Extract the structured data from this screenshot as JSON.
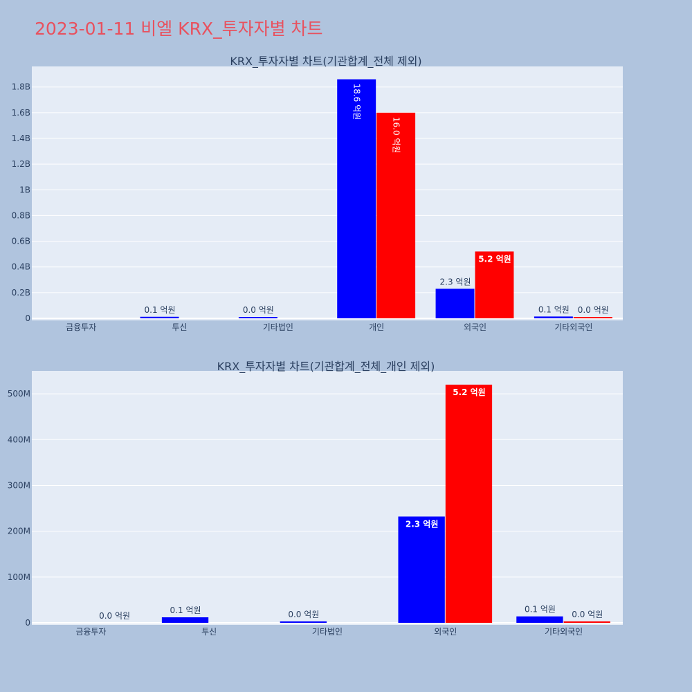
{
  "page": {
    "title": "2023-01-11 비엘 KRX_투자자별 차트"
  },
  "colors": {
    "background": "#b0c4de",
    "plot_bg": "#e5ecf6",
    "grid": "#ffffff",
    "title": "#e8515e",
    "series_a": "#0000ff",
    "series_b": "#ff0000"
  },
  "chart_data": [
    {
      "type": "bar",
      "title": "KRX_투자자별 차트(기관합계_전체 제외)",
      "categories": [
        "금융투자",
        "투신",
        "기타법인",
        "개인",
        "외국인",
        "기타외국인"
      ],
      "ylim": [
        0,
        1960000000
      ],
      "yticks": [
        0,
        200000000,
        400000000,
        600000000,
        800000000,
        1000000000,
        1200000000,
        1400000000,
        1600000000,
        1800000000
      ],
      "ytick_labels": [
        "0",
        "0.2B",
        "0.4B",
        "0.6B",
        "0.8B",
        "1B",
        "1.2B",
        "1.4B",
        "1.6B",
        "1.8B"
      ],
      "grid": true,
      "series": [
        {
          "color": "#0000ff",
          "values": [
            null,
            12000000,
            3000000,
            1860000000,
            230000000,
            14000000
          ],
          "labels": [
            "",
            "0.1 억원",
            "0.0 억원",
            "18.6 억원",
            "2.3 억원",
            "0.1 억원"
          ]
        },
        {
          "color": "#ff0000",
          "values": [
            null,
            null,
            null,
            1600000000,
            520000000,
            3000000
          ],
          "labels": [
            "",
            "",
            "",
            "16.0 억원",
            "5.2 억원",
            "0.0 억원"
          ]
        }
      ]
    },
    {
      "type": "bar",
      "title": "KRX_투자자별 차트(기관합계_전체_개인 제외)",
      "categories": [
        "금융투자",
        "투신",
        "기타법인",
        "외국인",
        "기타외국인"
      ],
      "ylim": [
        0,
        550000000
      ],
      "yticks": [
        0,
        100000000,
        200000000,
        300000000,
        400000000,
        500000000
      ],
      "ytick_labels": [
        "0",
        "100M",
        "200M",
        "300M",
        "400M",
        "500M"
      ],
      "grid": true,
      "series": [
        {
          "color": "#0000ff",
          "values": [
            null,
            12000000,
            3000000,
            232000000,
            14000000
          ],
          "labels": [
            "",
            "0.1 억원",
            "0.0 억원",
            "2.3 억원",
            "0.1 억원"
          ]
        },
        {
          "color": "#ff0000",
          "values": [
            0,
            null,
            null,
            520000000,
            3000000
          ],
          "labels": [
            "0.0 억원",
            "",
            "",
            "5.2 억원",
            "0.0 억원"
          ]
        }
      ]
    }
  ]
}
